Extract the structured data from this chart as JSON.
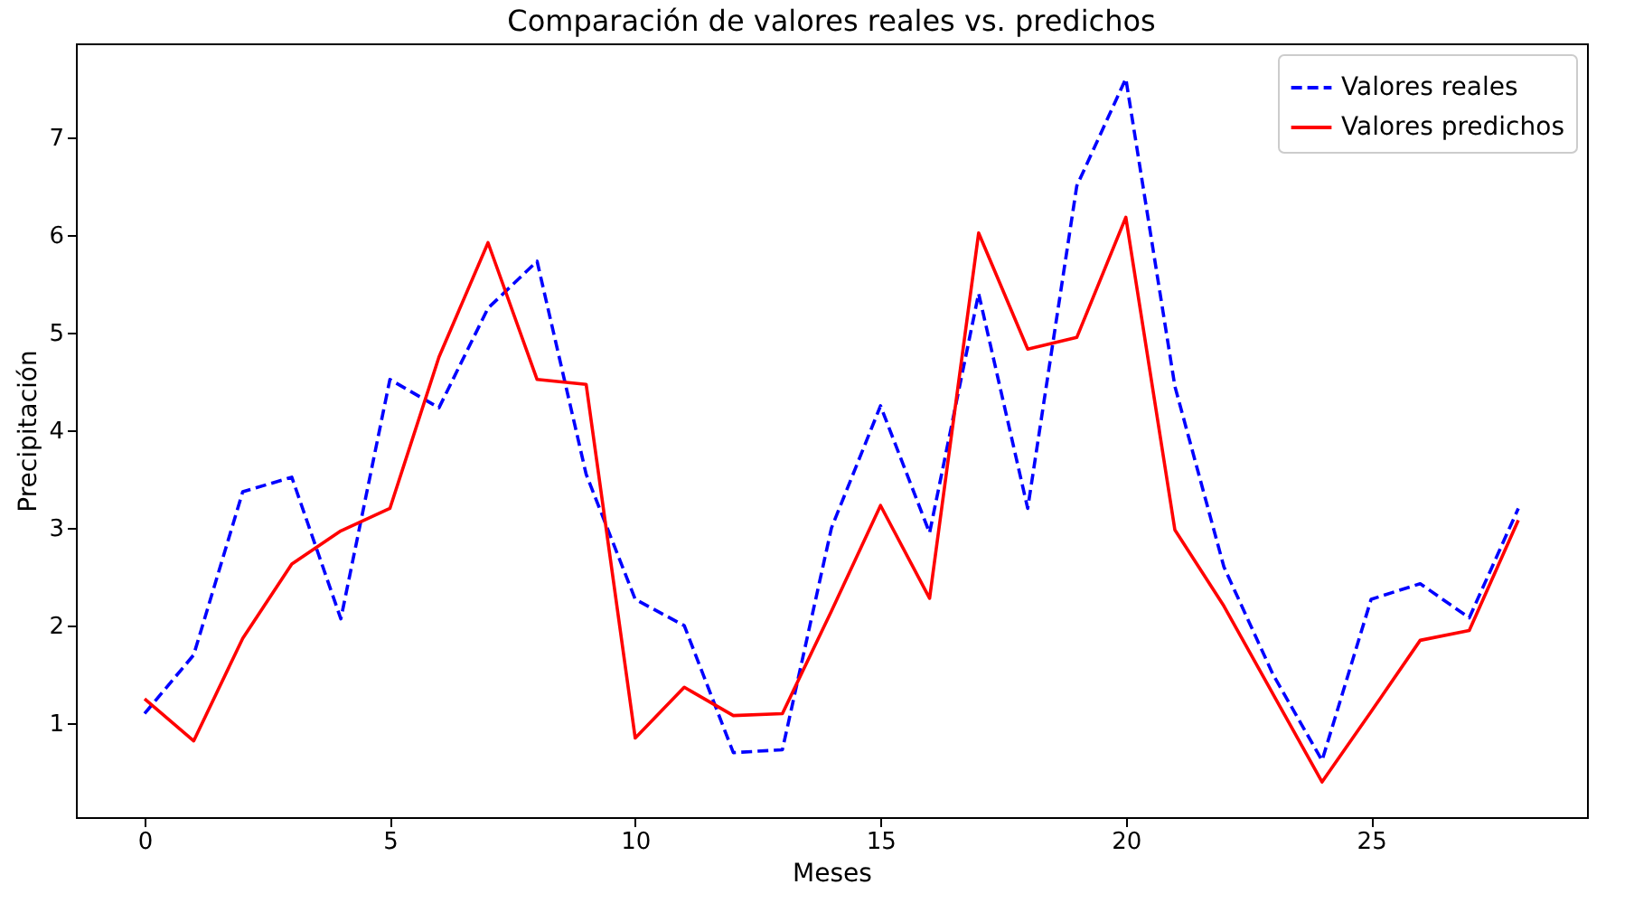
{
  "chart_data": {
    "type": "line",
    "title": "Comparación de valores reales vs. predichos",
    "xlabel": "Meses",
    "ylabel": "Precipitación",
    "x": [
      0,
      1,
      2,
      3,
      4,
      5,
      6,
      7,
      8,
      9,
      10,
      11,
      12,
      13,
      14,
      15,
      16,
      17,
      18,
      19,
      20,
      21,
      22,
      23,
      24,
      25,
      26,
      27,
      28
    ],
    "series": [
      {
        "name": "Valores reales",
        "color": "#0000ff",
        "line_style": "dashed",
        "values": [
          1.1,
          1.7,
          3.37,
          3.52,
          2.07,
          4.52,
          4.23,
          5.25,
          5.73,
          3.55,
          2.27,
          2.0,
          0.7,
          0.73,
          3.0,
          4.25,
          2.95,
          5.4,
          3.2,
          6.5,
          7.6,
          4.45,
          2.6,
          1.5,
          0.62,
          2.27,
          2.43,
          2.08,
          3.2
        ]
      },
      {
        "name": "Valores predichos",
        "color": "#ff0000",
        "line_style": "solid",
        "values": [
          1.25,
          0.82,
          1.87,
          2.63,
          2.97,
          3.2,
          4.75,
          5.92,
          4.52,
          4.47,
          0.85,
          1.37,
          1.08,
          1.1,
          2.15,
          3.23,
          2.28,
          6.02,
          4.83,
          4.95,
          6.18,
          2.98,
          2.2,
          1.3,
          0.4,
          1.12,
          1.85,
          1.95,
          3.08
        ]
      }
    ],
    "xlim": [
      -1.4,
      29.4
    ],
    "ylim": [
      0.04,
      7.96
    ],
    "xticks": [
      0,
      5,
      10,
      15,
      20,
      25
    ],
    "yticks": [
      1,
      2,
      3,
      4,
      5,
      6,
      7
    ],
    "grid": false,
    "legend": "top right",
    "marker": "none"
  }
}
